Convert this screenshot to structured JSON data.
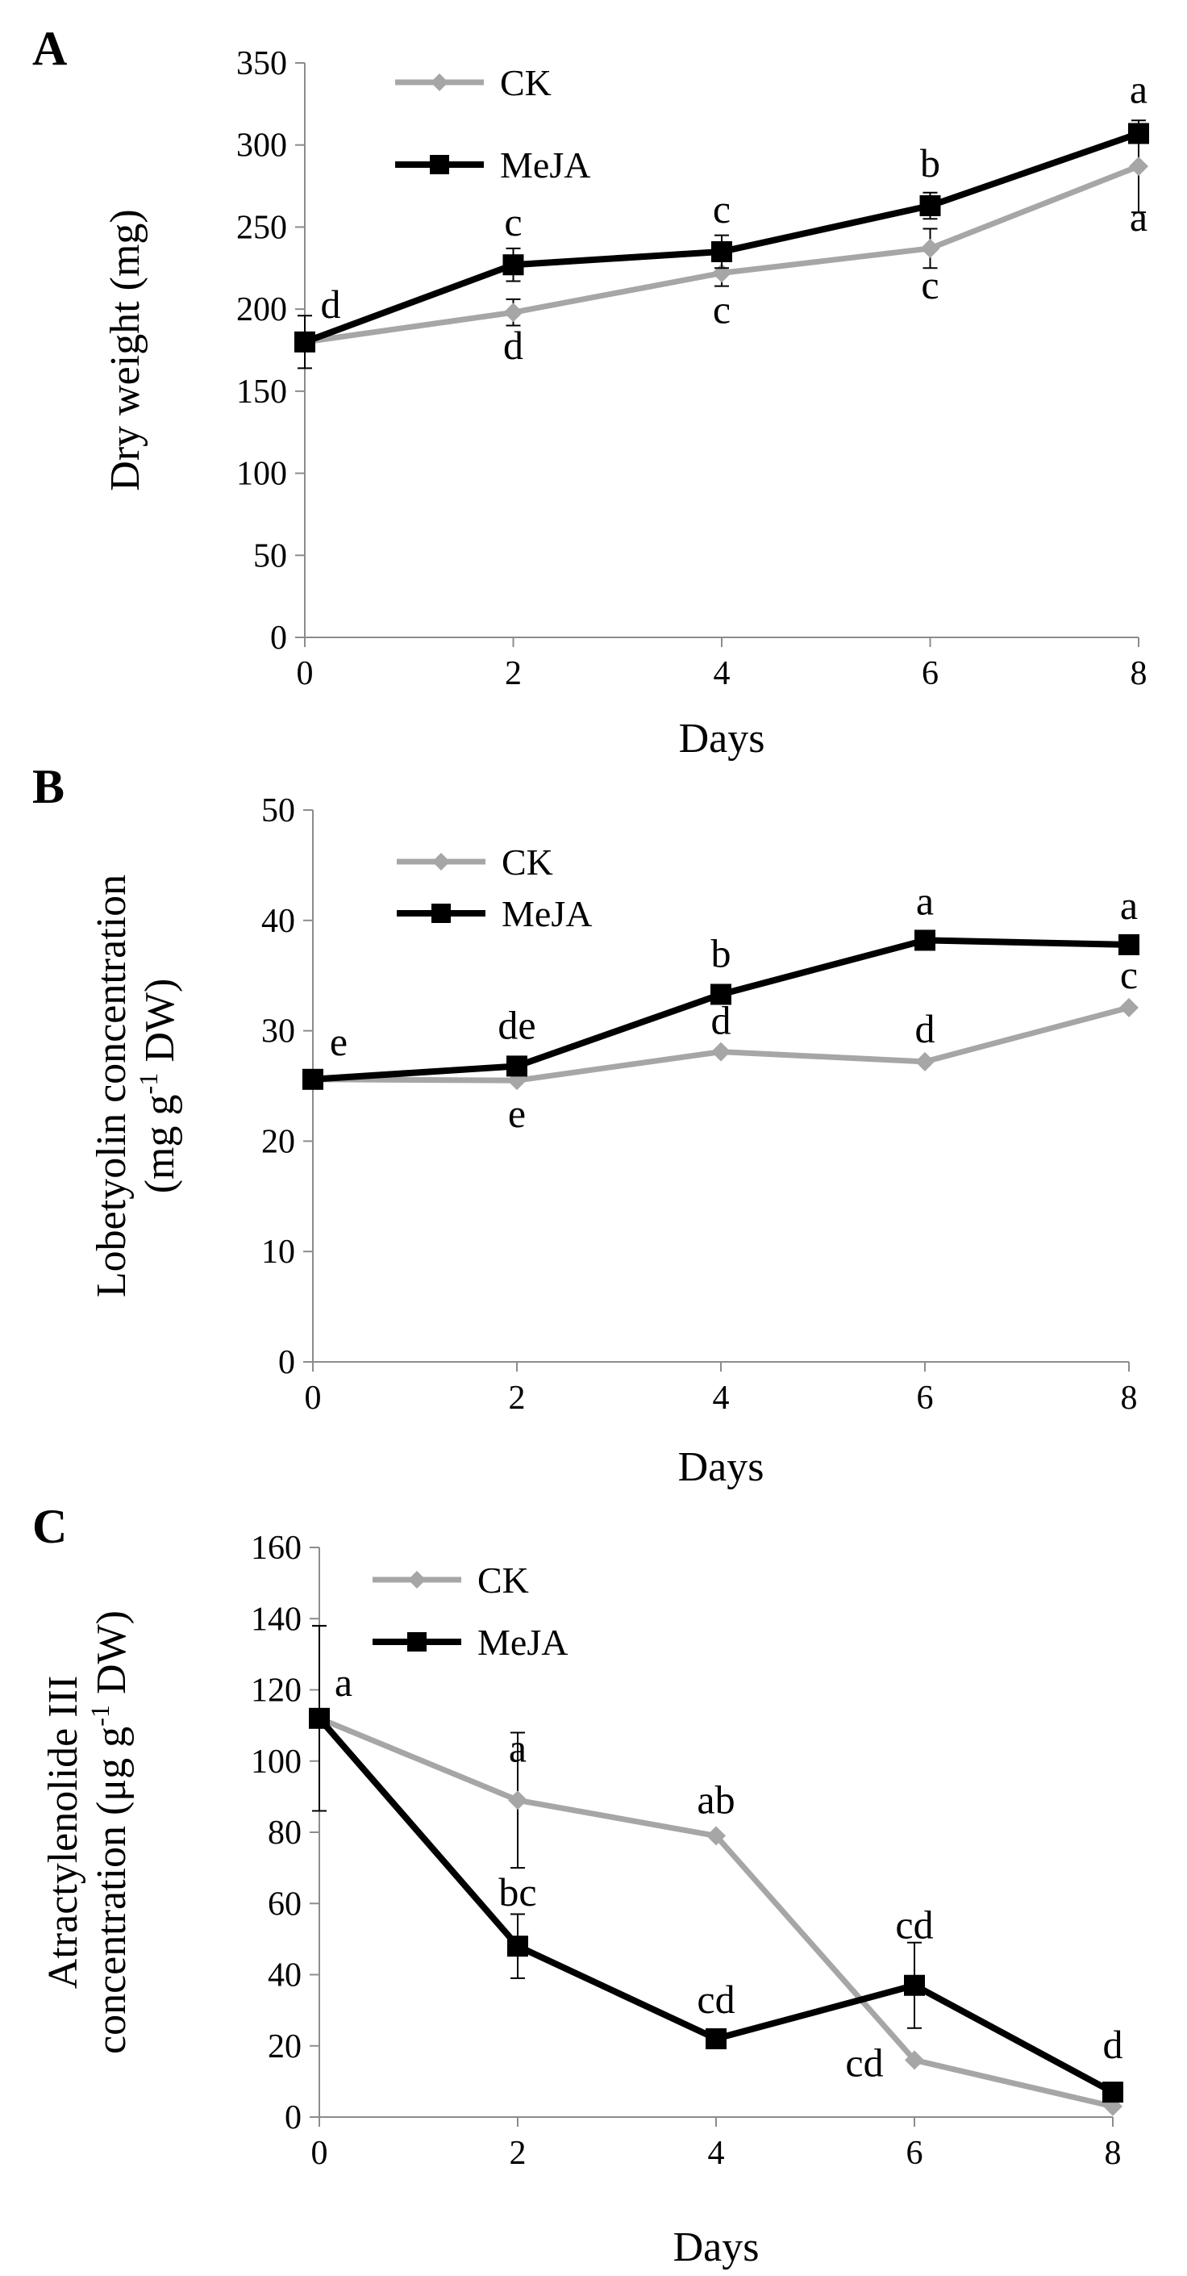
{
  "colors": {
    "ck": "#a6a6a6",
    "meja": "#000000",
    "axis": "#8c8c8c"
  },
  "chart_data": [
    {
      "type": "line",
      "panel_label": "A",
      "xlabel": "Days",
      "ylabel": "Dry weight (mg)",
      "x": [
        0,
        2,
        4,
        6,
        8
      ],
      "xticks": [
        "0",
        "2",
        "4",
        "6",
        "8"
      ],
      "ylim": [
        0,
        350
      ],
      "yticks": [
        "0",
        "50",
        "100",
        "150",
        "200",
        "250",
        "300",
        "350"
      ],
      "legend_position": "top-left",
      "series": [
        {
          "name": "CK",
          "marker": "diamond",
          "values": [
            180,
            198,
            222,
            237,
            287
          ],
          "err": [
            0,
            8,
            8,
            12,
            28
          ],
          "letters": [
            "",
            "d",
            "c",
            "c",
            "a"
          ]
        },
        {
          "name": "MeJA",
          "marker": "square",
          "values": [
            180,
            227,
            235,
            263,
            307
          ],
          "err": [
            16,
            10,
            10,
            8,
            5
          ],
          "letters": [
            "d",
            "c",
            "c",
            "b",
            "a"
          ]
        }
      ]
    },
    {
      "type": "line",
      "panel_label": "B",
      "xlabel": "Days",
      "ylabel": [
        "Lobetyolin concentration",
        "(mg g",
        "-1",
        " DW)"
      ],
      "x": [
        0,
        2,
        4,
        6,
        8
      ],
      "xticks": [
        "0",
        "2",
        "4",
        "6",
        "8"
      ],
      "ylim": [
        0,
        50
      ],
      "yticks": [
        "0",
        "10",
        "20",
        "30",
        "40",
        "50"
      ],
      "legend_position": "top-left",
      "series": [
        {
          "name": "CK",
          "marker": "diamond",
          "values": [
            25.6,
            25.5,
            28.1,
            27.2,
            32.1
          ],
          "err": [
            0,
            0,
            0,
            0,
            0
          ],
          "letters": [
            "",
            "e",
            "d",
            "d",
            "c"
          ]
        },
        {
          "name": "MeJA",
          "marker": "square",
          "values": [
            25.6,
            26.8,
            33.3,
            38.2,
            37.8
          ],
          "err": [
            0,
            0,
            0,
            0,
            0
          ],
          "letters": [
            "e",
            "de",
            "b",
            "a",
            "a"
          ]
        }
      ]
    },
    {
      "type": "line",
      "panel_label": "C",
      "xlabel": "Days",
      "ylabel": [
        "Atractylenolide III",
        "concentration (μg g",
        "-1",
        " DW)"
      ],
      "x": [
        0,
        2,
        4,
        6,
        8
      ],
      "xticks": [
        "0",
        "2",
        "4",
        "6",
        "8"
      ],
      "ylim": [
        0,
        160
      ],
      "yticks": [
        "0",
        "20",
        "40",
        "60",
        "80",
        "100",
        "120",
        "140",
        "160"
      ],
      "legend_position": "top-left",
      "series": [
        {
          "name": "CK",
          "marker": "diamond",
          "values": [
            112,
            89,
            79,
            16,
            3
          ],
          "err": [
            26,
            19,
            0,
            0,
            0
          ],
          "letters": [
            "a",
            "a",
            "ab",
            "cd",
            ""
          ]
        },
        {
          "name": "MeJA",
          "marker": "square",
          "values": [
            112,
            48,
            22,
            37,
            7
          ],
          "err": [
            26,
            9,
            0,
            12,
            0
          ],
          "letters": [
            "",
            "bc",
            "cd",
            "cd",
            "d"
          ]
        }
      ]
    }
  ]
}
